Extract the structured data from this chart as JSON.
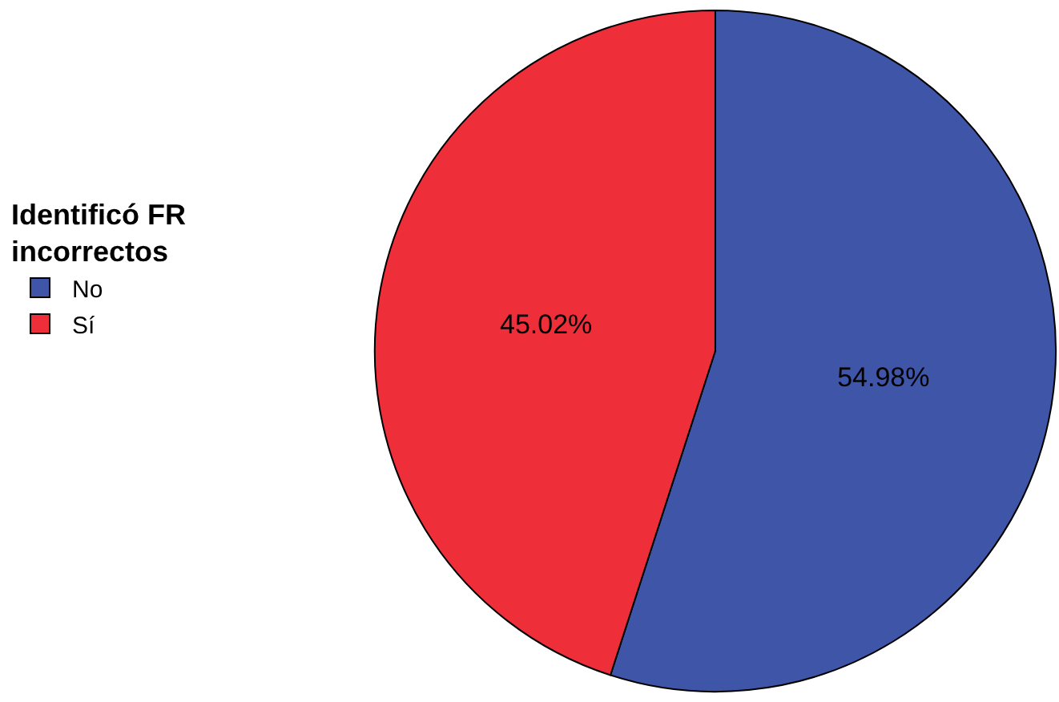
{
  "chart_data": {
    "type": "pie",
    "legend_title": "Identificó FR incorrectos",
    "legend": "left",
    "categories": [
      "No",
      "Sí"
    ],
    "values": [
      54.98,
      45.02
    ],
    "colors": [
      "#3f55a8",
      "#ee2f3a"
    ],
    "value_labels": [
      "54.98%",
      "45.02%"
    ]
  }
}
